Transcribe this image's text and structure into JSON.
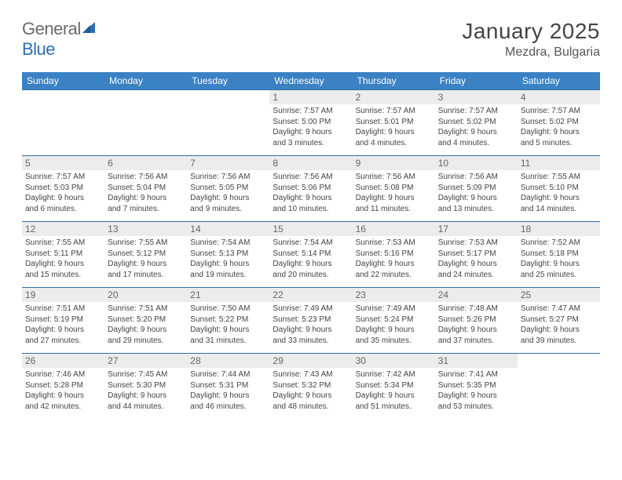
{
  "logo": {
    "general": "General",
    "blue": "Blue"
  },
  "title": "January 2025",
  "location": "Mezdra, Bulgaria",
  "dayHeaders": [
    "Sunday",
    "Monday",
    "Tuesday",
    "Wednesday",
    "Thursday",
    "Friday",
    "Saturday"
  ],
  "colors": {
    "headerBg": "#3a82c4",
    "border": "#2f6fb0",
    "dayBg": "#ececec",
    "text": "#444"
  },
  "weeks": [
    [
      {
        "n": "",
        "sr": "",
        "ss": "",
        "dl1": "",
        "dl2": ""
      },
      {
        "n": "",
        "sr": "",
        "ss": "",
        "dl1": "",
        "dl2": ""
      },
      {
        "n": "",
        "sr": "",
        "ss": "",
        "dl1": "",
        "dl2": ""
      },
      {
        "n": "1",
        "sr": "Sunrise: 7:57 AM",
        "ss": "Sunset: 5:00 PM",
        "dl1": "Daylight: 9 hours",
        "dl2": "and 3 minutes."
      },
      {
        "n": "2",
        "sr": "Sunrise: 7:57 AM",
        "ss": "Sunset: 5:01 PM",
        "dl1": "Daylight: 9 hours",
        "dl2": "and 4 minutes."
      },
      {
        "n": "3",
        "sr": "Sunrise: 7:57 AM",
        "ss": "Sunset: 5:02 PM",
        "dl1": "Daylight: 9 hours",
        "dl2": "and 4 minutes."
      },
      {
        "n": "4",
        "sr": "Sunrise: 7:57 AM",
        "ss": "Sunset: 5:02 PM",
        "dl1": "Daylight: 9 hours",
        "dl2": "and 5 minutes."
      }
    ],
    [
      {
        "n": "5",
        "sr": "Sunrise: 7:57 AM",
        "ss": "Sunset: 5:03 PM",
        "dl1": "Daylight: 9 hours",
        "dl2": "and 6 minutes."
      },
      {
        "n": "6",
        "sr": "Sunrise: 7:56 AM",
        "ss": "Sunset: 5:04 PM",
        "dl1": "Daylight: 9 hours",
        "dl2": "and 7 minutes."
      },
      {
        "n": "7",
        "sr": "Sunrise: 7:56 AM",
        "ss": "Sunset: 5:05 PM",
        "dl1": "Daylight: 9 hours",
        "dl2": "and 9 minutes."
      },
      {
        "n": "8",
        "sr": "Sunrise: 7:56 AM",
        "ss": "Sunset: 5:06 PM",
        "dl1": "Daylight: 9 hours",
        "dl2": "and 10 minutes."
      },
      {
        "n": "9",
        "sr": "Sunrise: 7:56 AM",
        "ss": "Sunset: 5:08 PM",
        "dl1": "Daylight: 9 hours",
        "dl2": "and 11 minutes."
      },
      {
        "n": "10",
        "sr": "Sunrise: 7:56 AM",
        "ss": "Sunset: 5:09 PM",
        "dl1": "Daylight: 9 hours",
        "dl2": "and 13 minutes."
      },
      {
        "n": "11",
        "sr": "Sunrise: 7:55 AM",
        "ss": "Sunset: 5:10 PM",
        "dl1": "Daylight: 9 hours",
        "dl2": "and 14 minutes."
      }
    ],
    [
      {
        "n": "12",
        "sr": "Sunrise: 7:55 AM",
        "ss": "Sunset: 5:11 PM",
        "dl1": "Daylight: 9 hours",
        "dl2": "and 15 minutes."
      },
      {
        "n": "13",
        "sr": "Sunrise: 7:55 AM",
        "ss": "Sunset: 5:12 PM",
        "dl1": "Daylight: 9 hours",
        "dl2": "and 17 minutes."
      },
      {
        "n": "14",
        "sr": "Sunrise: 7:54 AM",
        "ss": "Sunset: 5:13 PM",
        "dl1": "Daylight: 9 hours",
        "dl2": "and 19 minutes."
      },
      {
        "n": "15",
        "sr": "Sunrise: 7:54 AM",
        "ss": "Sunset: 5:14 PM",
        "dl1": "Daylight: 9 hours",
        "dl2": "and 20 minutes."
      },
      {
        "n": "16",
        "sr": "Sunrise: 7:53 AM",
        "ss": "Sunset: 5:16 PM",
        "dl1": "Daylight: 9 hours",
        "dl2": "and 22 minutes."
      },
      {
        "n": "17",
        "sr": "Sunrise: 7:53 AM",
        "ss": "Sunset: 5:17 PM",
        "dl1": "Daylight: 9 hours",
        "dl2": "and 24 minutes."
      },
      {
        "n": "18",
        "sr": "Sunrise: 7:52 AM",
        "ss": "Sunset: 5:18 PM",
        "dl1": "Daylight: 9 hours",
        "dl2": "and 25 minutes."
      }
    ],
    [
      {
        "n": "19",
        "sr": "Sunrise: 7:51 AM",
        "ss": "Sunset: 5:19 PM",
        "dl1": "Daylight: 9 hours",
        "dl2": "and 27 minutes."
      },
      {
        "n": "20",
        "sr": "Sunrise: 7:51 AM",
        "ss": "Sunset: 5:20 PM",
        "dl1": "Daylight: 9 hours",
        "dl2": "and 29 minutes."
      },
      {
        "n": "21",
        "sr": "Sunrise: 7:50 AM",
        "ss": "Sunset: 5:22 PM",
        "dl1": "Daylight: 9 hours",
        "dl2": "and 31 minutes."
      },
      {
        "n": "22",
        "sr": "Sunrise: 7:49 AM",
        "ss": "Sunset: 5:23 PM",
        "dl1": "Daylight: 9 hours",
        "dl2": "and 33 minutes."
      },
      {
        "n": "23",
        "sr": "Sunrise: 7:49 AM",
        "ss": "Sunset: 5:24 PM",
        "dl1": "Daylight: 9 hours",
        "dl2": "and 35 minutes."
      },
      {
        "n": "24",
        "sr": "Sunrise: 7:48 AM",
        "ss": "Sunset: 5:26 PM",
        "dl1": "Daylight: 9 hours",
        "dl2": "and 37 minutes."
      },
      {
        "n": "25",
        "sr": "Sunrise: 7:47 AM",
        "ss": "Sunset: 5:27 PM",
        "dl1": "Daylight: 9 hours",
        "dl2": "and 39 minutes."
      }
    ],
    [
      {
        "n": "26",
        "sr": "Sunrise: 7:46 AM",
        "ss": "Sunset: 5:28 PM",
        "dl1": "Daylight: 9 hours",
        "dl2": "and 42 minutes."
      },
      {
        "n": "27",
        "sr": "Sunrise: 7:45 AM",
        "ss": "Sunset: 5:30 PM",
        "dl1": "Daylight: 9 hours",
        "dl2": "and 44 minutes."
      },
      {
        "n": "28",
        "sr": "Sunrise: 7:44 AM",
        "ss": "Sunset: 5:31 PM",
        "dl1": "Daylight: 9 hours",
        "dl2": "and 46 minutes."
      },
      {
        "n": "29",
        "sr": "Sunrise: 7:43 AM",
        "ss": "Sunset: 5:32 PM",
        "dl1": "Daylight: 9 hours",
        "dl2": "and 48 minutes."
      },
      {
        "n": "30",
        "sr": "Sunrise: 7:42 AM",
        "ss": "Sunset: 5:34 PM",
        "dl1": "Daylight: 9 hours",
        "dl2": "and 51 minutes."
      },
      {
        "n": "31",
        "sr": "Sunrise: 7:41 AM",
        "ss": "Sunset: 5:35 PM",
        "dl1": "Daylight: 9 hours",
        "dl2": "and 53 minutes."
      },
      {
        "n": "",
        "sr": "",
        "ss": "",
        "dl1": "",
        "dl2": ""
      }
    ]
  ]
}
